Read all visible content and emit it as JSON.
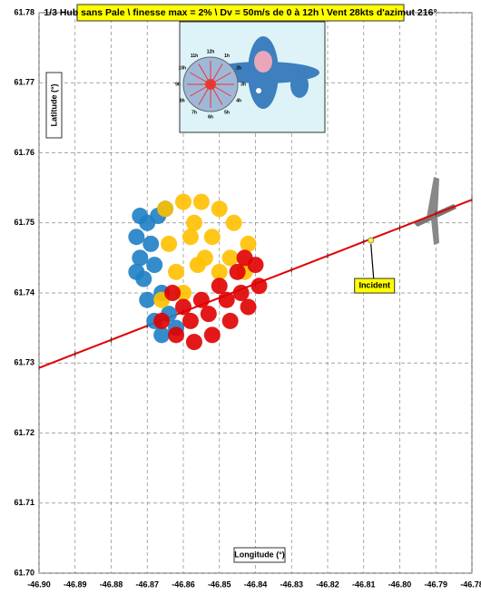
{
  "chart_data": {
    "type": "scatter",
    "title": "1/3 Hub sans Pale \\ finesse max = 2% \\ Dv = 50m/s de 0 à 12h \\ Vent 28kts d'azimut 216°",
    "xlabel": "Longitude (°)",
    "ylabel": "Latitude (°)",
    "xlim": [
      -46.9,
      -46.78
    ],
    "ylim": [
      61.7,
      61.78
    ],
    "xticks": [
      {
        "value": -46.9,
        "label": "-46.90"
      },
      -46.89,
      -46.88,
      -46.87,
      -46.86,
      -46.85,
      -46.84,
      -46.83,
      -46.82,
      -46.81,
      {
        "value": -46.8,
        "label": "-46.80"
      },
      -46.79,
      -46.78
    ],
    "yticks": [
      {
        "value": 61.7,
        "label": "61.70"
      },
      61.71,
      61.72,
      61.73,
      61.74,
      61.75,
      61.76,
      61.77,
      61.78
    ],
    "grid": true,
    "series": [
      {
        "color": "#1f7fc4",
        "x": [
          -46.873,
          -46.872,
          -46.871,
          -46.87,
          -46.868,
          -46.866,
          -46.87,
          -46.867,
          -46.868,
          -46.866,
          -46.864,
          -46.872,
          -46.869,
          -46.865,
          -46.873,
          -46.862
        ],
        "y": [
          61.748,
          61.745,
          61.742,
          61.739,
          61.736,
          61.734,
          61.75,
          61.751,
          61.744,
          61.74,
          61.737,
          61.751,
          61.747,
          61.752,
          61.743,
          61.735
        ]
      },
      {
        "color": "#ffc000",
        "x": [
          -46.865,
          -46.86,
          -46.855,
          -46.85,
          -46.846,
          -46.842,
          -46.864,
          -46.858,
          -46.852,
          -46.847,
          -46.862,
          -46.856,
          -46.85,
          -46.843,
          -46.866,
          -46.86,
          -46.854,
          -46.857
        ],
        "y": [
          61.752,
          61.753,
          61.753,
          61.752,
          61.75,
          61.747,
          61.747,
          61.748,
          61.748,
          61.745,
          61.743,
          61.744,
          61.743,
          61.743,
          61.739,
          61.74,
          61.745,
          61.75
        ]
      },
      {
        "color": "#e00000",
        "x": [
          -46.866,
          -46.862,
          -46.857,
          -46.852,
          -46.847,
          -46.842,
          -46.839,
          -46.84,
          -46.845,
          -46.85,
          -46.855,
          -46.86,
          -46.863,
          -46.858,
          -46.853,
          -46.848,
          -46.844,
          -46.843
        ],
        "y": [
          61.736,
          61.734,
          61.733,
          61.734,
          61.736,
          61.738,
          61.741,
          61.744,
          61.743,
          61.741,
          61.739,
          61.738,
          61.74,
          61.736,
          61.737,
          61.739,
          61.74,
          61.745
        ]
      }
    ],
    "flight_path": {
      "color": "#e00000",
      "x": [
        -46.9,
        -46.89,
        -46.88,
        -46.87,
        -46.86,
        -46.85,
        -46.84,
        -46.83,
        -46.82,
        -46.81,
        -46.8,
        -46.79,
        -46.78
      ],
      "y": [
        61.7293,
        61.7313,
        61.7333,
        61.7353,
        61.7373,
        61.7393,
        61.7413,
        61.7433,
        61.7453,
        61.7473,
        61.7493,
        61.7513,
        61.7533
      ]
    },
    "incident": {
      "label": "Incident",
      "x": -46.808,
      "y": 61.7475,
      "color": "#ffff00"
    },
    "inset_labels": [
      "12h",
      "1h",
      "2h",
      "3h",
      "4h",
      "5h",
      "6h",
      "7h",
      "8h",
      "9h",
      "10h",
      "11h"
    ]
  }
}
